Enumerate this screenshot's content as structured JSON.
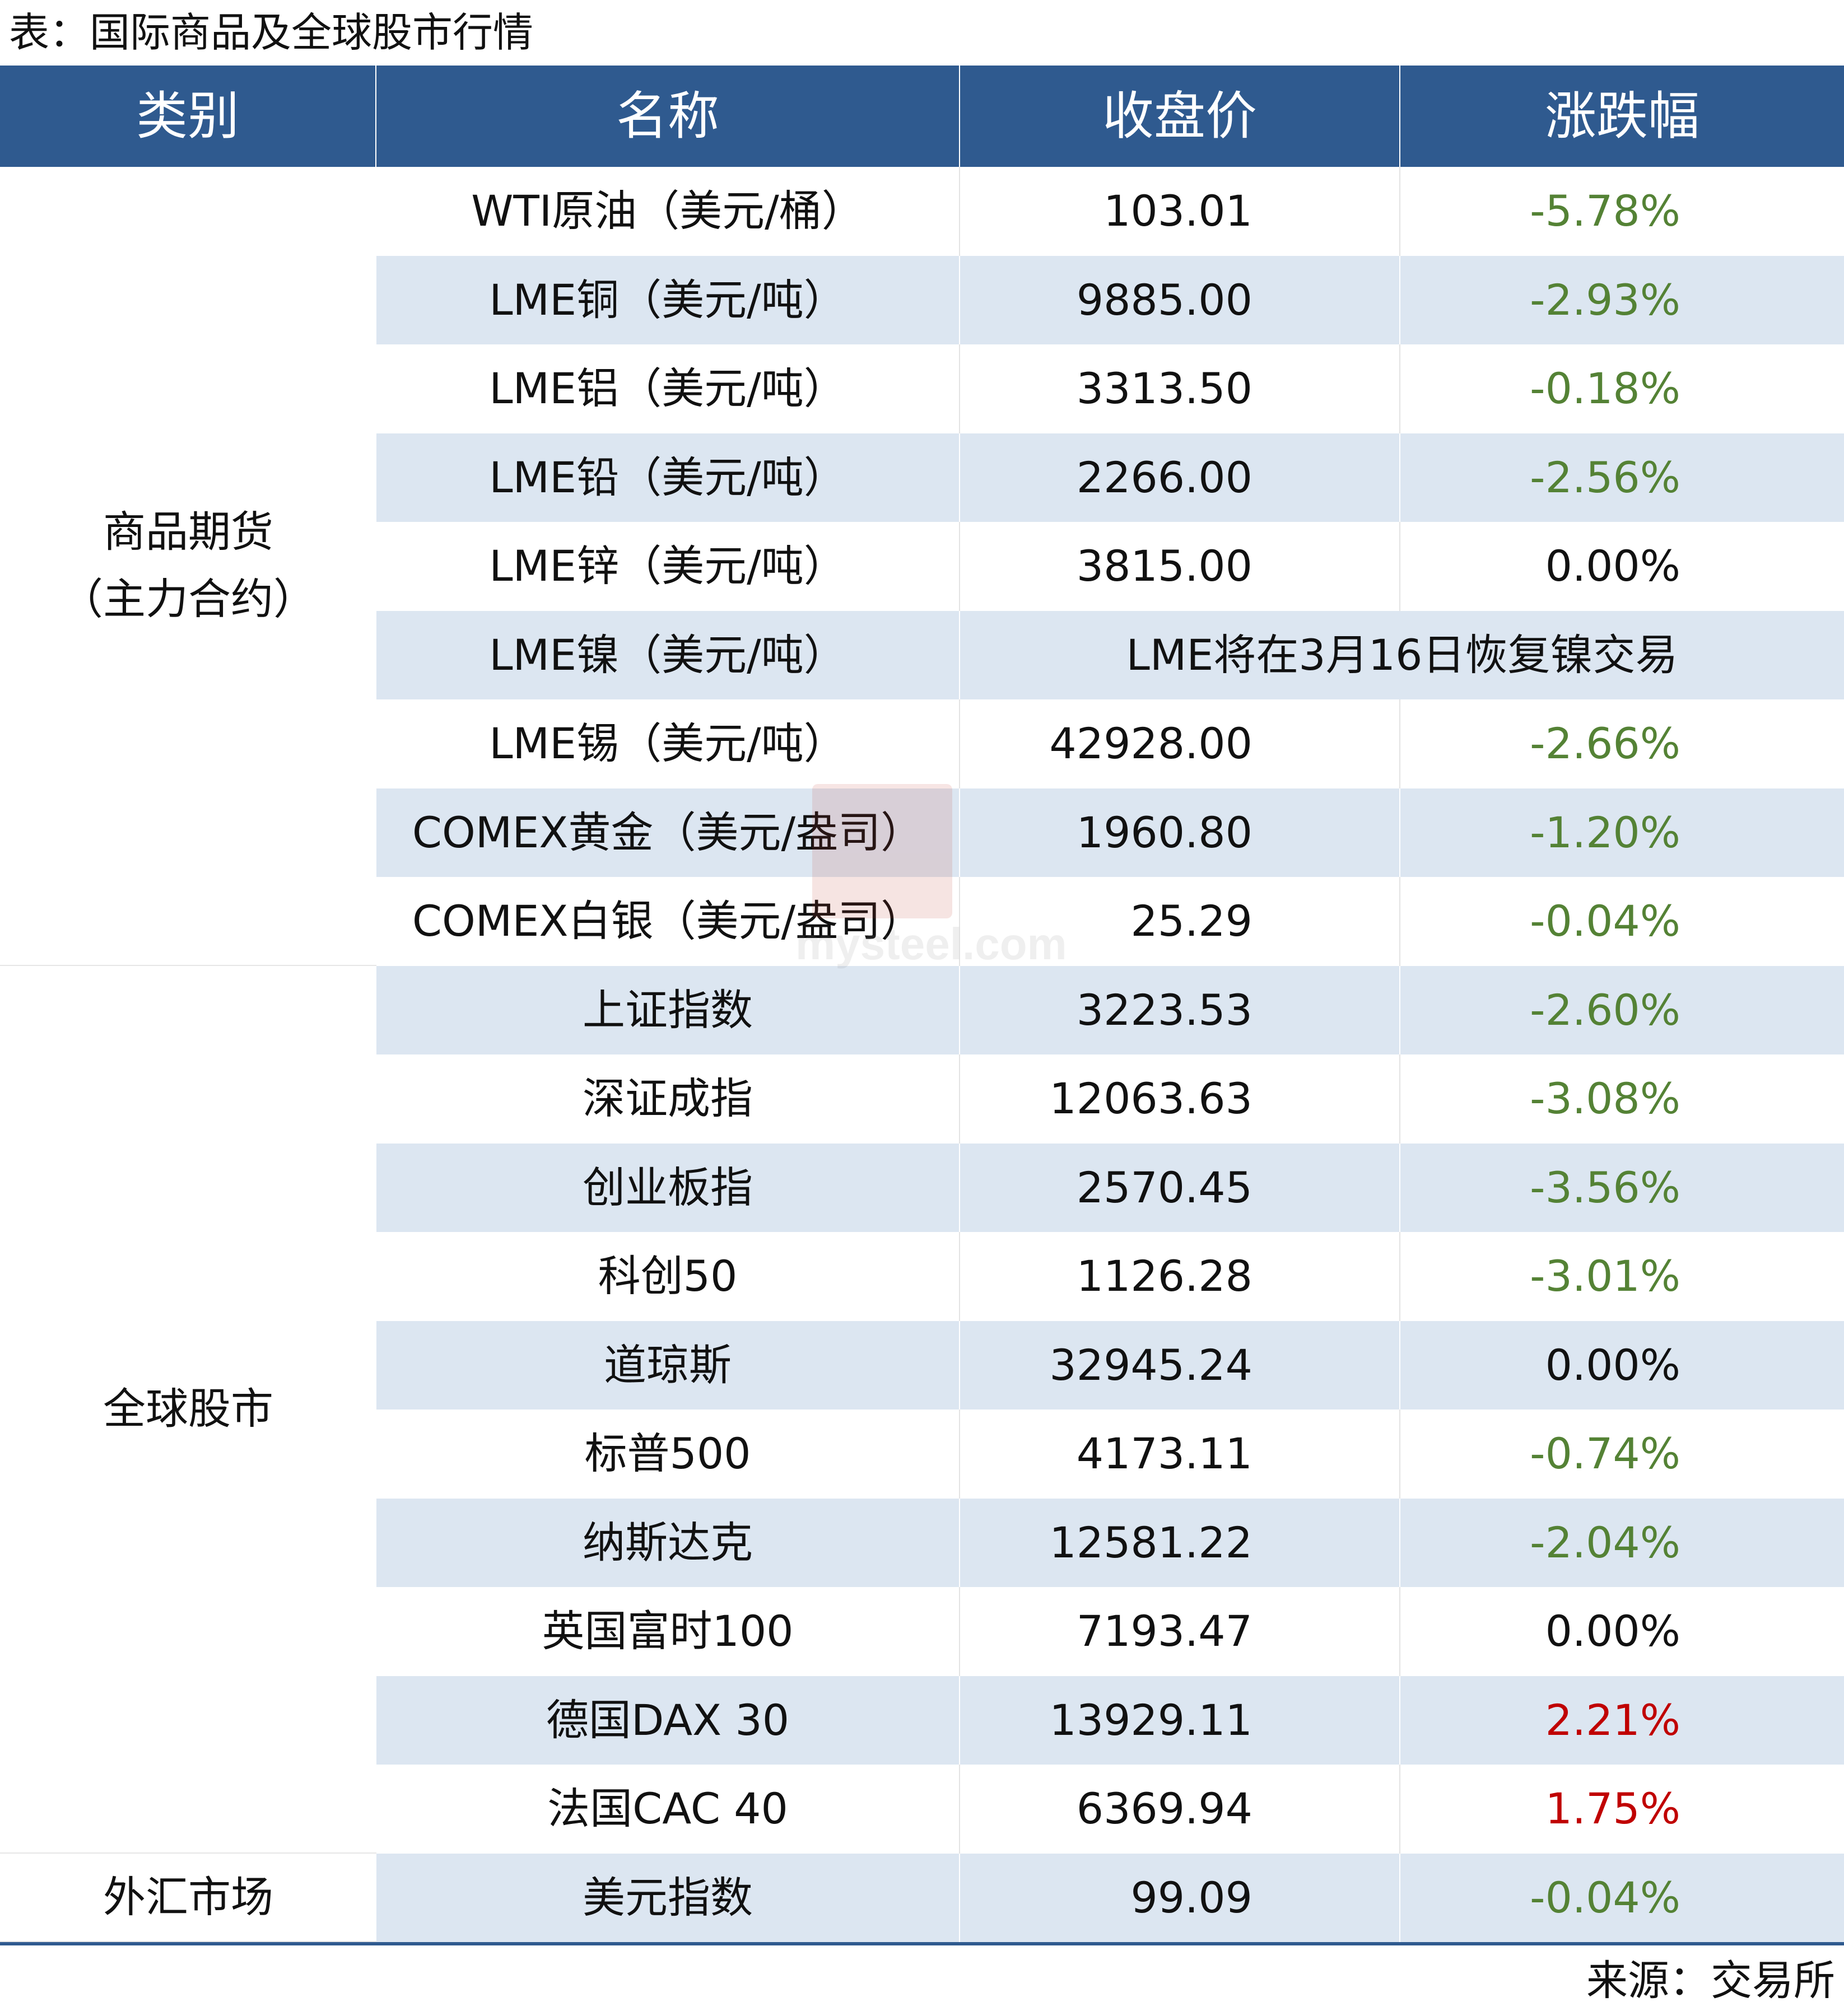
{
  "title": "表：国际商品及全球股市行情",
  "headers": [
    "类别",
    "名称",
    "收盘价",
    "涨跌幅"
  ],
  "categories": [
    {
      "label": "商品期货\n（主力合约）",
      "rows": 9
    },
    {
      "label": "全球股市",
      "rows": 10
    },
    {
      "label": "外汇市场",
      "rows": 1
    }
  ],
  "rows": [
    {
      "name": "WTI原油（美元/桶）",
      "close": "103.01",
      "change": "-5.78%",
      "dir": "neg"
    },
    {
      "name": "LME铜（美元/吨）",
      "close": "9885.00",
      "change": "-2.93%",
      "dir": "neg"
    },
    {
      "name": "LME铝（美元/吨）",
      "close": "3313.50",
      "change": "-0.18%",
      "dir": "neg"
    },
    {
      "name": "LME铅（美元/吨）",
      "close": "2266.00",
      "change": "-2.56%",
      "dir": "neg"
    },
    {
      "name": "LME锌（美元/吨）",
      "close": "3815.00",
      "change": "0.00%",
      "dir": "zero"
    },
    {
      "name": "LME镍（美元/吨）",
      "note": "LME将在3月16日恢复镍交易"
    },
    {
      "name": "LME锡（美元/吨）",
      "close": "42928.00",
      "change": "-2.66%",
      "dir": "neg"
    },
    {
      "name": "COMEX黄金（美元/盎司）",
      "close": "1960.80",
      "change": "-1.20%",
      "dir": "neg"
    },
    {
      "name": "COMEX白银（美元/盎司）",
      "close": "25.29",
      "change": "-0.04%",
      "dir": "neg"
    },
    {
      "name": "上证指数",
      "close": "3223.53",
      "change": "-2.60%",
      "dir": "neg"
    },
    {
      "name": "深证成指",
      "close": "12063.63",
      "change": "-3.08%",
      "dir": "neg"
    },
    {
      "name": "创业板指",
      "close": "2570.45",
      "change": "-3.56%",
      "dir": "neg"
    },
    {
      "name": "科创50",
      "close": "1126.28",
      "change": "-3.01%",
      "dir": "neg"
    },
    {
      "name": "道琼斯",
      "close": "32945.24",
      "change": "0.00%",
      "dir": "zero"
    },
    {
      "name": "标普500",
      "close": "4173.11",
      "change": "-0.74%",
      "dir": "neg"
    },
    {
      "name": "纳斯达克",
      "close": "12581.22",
      "change": "-2.04%",
      "dir": "neg"
    },
    {
      "name": "英国富时100",
      "close": "7193.47",
      "change": "0.00%",
      "dir": "zero"
    },
    {
      "name": "德国DAX 30",
      "close": "13929.11",
      "change": "2.21%",
      "dir": "pos"
    },
    {
      "name": "法国CAC 40",
      "close": "6369.94",
      "change": "1.75%",
      "dir": "pos"
    },
    {
      "name": "美元指数",
      "close": "99.09",
      "change": "-0.04%",
      "dir": "neg"
    }
  ],
  "source": "来源：交易所",
  "watermark": "mysteel.com",
  "colors": {
    "header_bg": "#2f5a8f",
    "alt_row_bg": "#dce6f1",
    "negative": "#548235",
    "positive": "#c00000"
  }
}
